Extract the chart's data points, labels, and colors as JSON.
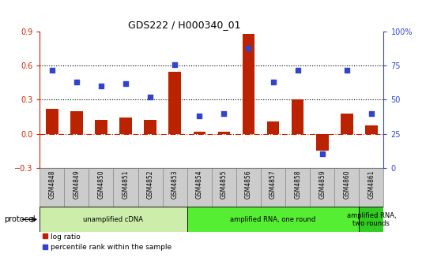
{
  "title": "GDS222 / H000340_01",
  "samples": [
    "GSM4848",
    "GSM4849",
    "GSM4850",
    "GSM4851",
    "GSM4852",
    "GSM4853",
    "GSM4854",
    "GSM4855",
    "GSM4856",
    "GSM4857",
    "GSM4858",
    "GSM4859",
    "GSM4860",
    "GSM4861"
  ],
  "log_ratio": [
    0.22,
    0.2,
    0.12,
    0.14,
    0.12,
    0.55,
    0.02,
    0.02,
    0.88,
    0.11,
    0.3,
    -0.15,
    0.18,
    0.07
  ],
  "percentile_pct": [
    72,
    63,
    60,
    62,
    52,
    76,
    38,
    40,
    88,
    63,
    72,
    10,
    72,
    40
  ],
  "bar_color": "#bb2200",
  "dot_color": "#3344cc",
  "ylim_left": [
    -0.3,
    0.9
  ],
  "ylim_right": [
    0,
    100
  ],
  "yticks_left": [
    -0.3,
    0.0,
    0.3,
    0.6,
    0.9
  ],
  "yticks_right": [
    0,
    25,
    50,
    75,
    100
  ],
  "protocol_groups": [
    {
      "label": "unamplified cDNA",
      "start": 0,
      "end": 5,
      "color": "#cceeaa"
    },
    {
      "label": "amplified RNA, one round",
      "start": 6,
      "end": 12,
      "color": "#55ee33"
    },
    {
      "label": "amplified RNA,\ntwo rounds",
      "start": 13,
      "end": 13,
      "color": "#33cc22"
    }
  ],
  "protocol_label": "protocol",
  "bg_color": "#ffffff",
  "tick_color_left": "#cc2200",
  "tick_color_right": "#3344cc",
  "cell_color": "#cccccc",
  "cell_edge_color": "#888888"
}
